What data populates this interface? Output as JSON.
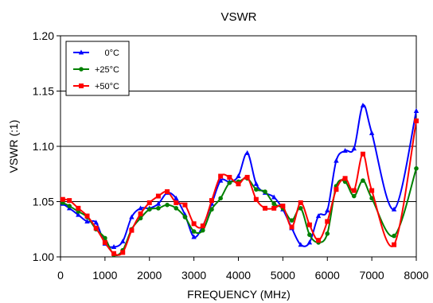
{
  "chart_data": {
    "type": "line",
    "title": "VSWR",
    "xlabel": "FREQUENCY (MHz)",
    "ylabel": "VSWR (:1)",
    "xlim": [
      0,
      8000
    ],
    "ylim": [
      1.0,
      1.2
    ],
    "xticks": [
      0,
      1000,
      2000,
      3000,
      4000,
      5000,
      6000,
      7000,
      8000
    ],
    "xtick_labels": [
      "0",
      "1000",
      "2000",
      "3000",
      "4000",
      "5000",
      "6000",
      "7000",
      "8000"
    ],
    "yticks": [
      1.0,
      1.05,
      1.1,
      1.15,
      1.2
    ],
    "ytick_labels": [
      "1.00",
      "1.05",
      "1.10",
      "1.15",
      "1.20"
    ],
    "grid": "horizontal",
    "legend_position": "top-left",
    "series": [
      {
        "name": "0°C",
        "color": "#0000ff",
        "marker": "triangle",
        "x": [
          50,
          200,
          400,
          600,
          800,
          1000,
          1200,
          1400,
          1600,
          1800,
          2000,
          2200,
          2400,
          2600,
          2800,
          3000,
          3200,
          3400,
          3600,
          3800,
          4000,
          4200,
          4400,
          4600,
          4800,
          5000,
          5200,
          5400,
          5600,
          5800,
          6000,
          6200,
          6400,
          6600,
          6800,
          7000,
          7500,
          8000
        ],
        "y": [
          1.048,
          1.044,
          1.038,
          1.032,
          1.031,
          1.012,
          1.009,
          1.014,
          1.036,
          1.044,
          1.044,
          1.048,
          1.058,
          1.053,
          1.038,
          1.018,
          1.028,
          1.048,
          1.069,
          1.068,
          1.073,
          1.094,
          1.066,
          1.058,
          1.054,
          1.043,
          1.026,
          1.011,
          1.013,
          1.037,
          1.042,
          1.087,
          1.096,
          1.098,
          1.137,
          1.112,
          1.043,
          1.132
        ]
      },
      {
        "name": "+25°C",
        "color": "#008000",
        "marker": "circle",
        "x": [
          50,
          200,
          400,
          600,
          800,
          1000,
          1200,
          1400,
          1600,
          1800,
          2000,
          2200,
          2400,
          2600,
          2800,
          3000,
          3200,
          3400,
          3600,
          3800,
          4000,
          4200,
          4400,
          4600,
          4800,
          5000,
          5200,
          5400,
          5600,
          5800,
          6000,
          6200,
          6400,
          6600,
          6800,
          7000,
          7500,
          8000
        ],
        "y": [
          1.049,
          1.046,
          1.041,
          1.036,
          1.025,
          1.017,
          1.002,
          1.006,
          1.025,
          1.035,
          1.043,
          1.044,
          1.047,
          1.044,
          1.036,
          1.023,
          1.024,
          1.043,
          1.053,
          1.067,
          1.068,
          1.071,
          1.061,
          1.059,
          1.048,
          1.044,
          1.033,
          1.044,
          1.02,
          1.013,
          1.021,
          1.064,
          1.068,
          1.055,
          1.069,
          1.053,
          1.019,
          1.08
        ]
      },
      {
        "name": "+50°C",
        "color": "#ff0000",
        "marker": "square",
        "x": [
          50,
          200,
          400,
          600,
          800,
          1000,
          1200,
          1400,
          1600,
          1800,
          2000,
          2200,
          2400,
          2600,
          2800,
          3000,
          3200,
          3400,
          3600,
          3800,
          4000,
          4200,
          4400,
          4600,
          4800,
          5000,
          5200,
          5400,
          5600,
          5800,
          6000,
          6200,
          6400,
          6600,
          6800,
          7000,
          7500,
          8000
        ],
        "y": [
          1.052,
          1.051,
          1.044,
          1.037,
          1.026,
          1.013,
          1.003,
          1.004,
          1.024,
          1.039,
          1.049,
          1.055,
          1.059,
          1.049,
          1.047,
          1.03,
          1.028,
          1.051,
          1.073,
          1.072,
          1.066,
          1.072,
          1.052,
          1.044,
          1.044,
          1.046,
          1.027,
          1.049,
          1.029,
          1.015,
          1.032,
          1.061,
          1.071,
          1.06,
          1.093,
          1.06,
          1.011,
          1.123
        ]
      }
    ]
  }
}
